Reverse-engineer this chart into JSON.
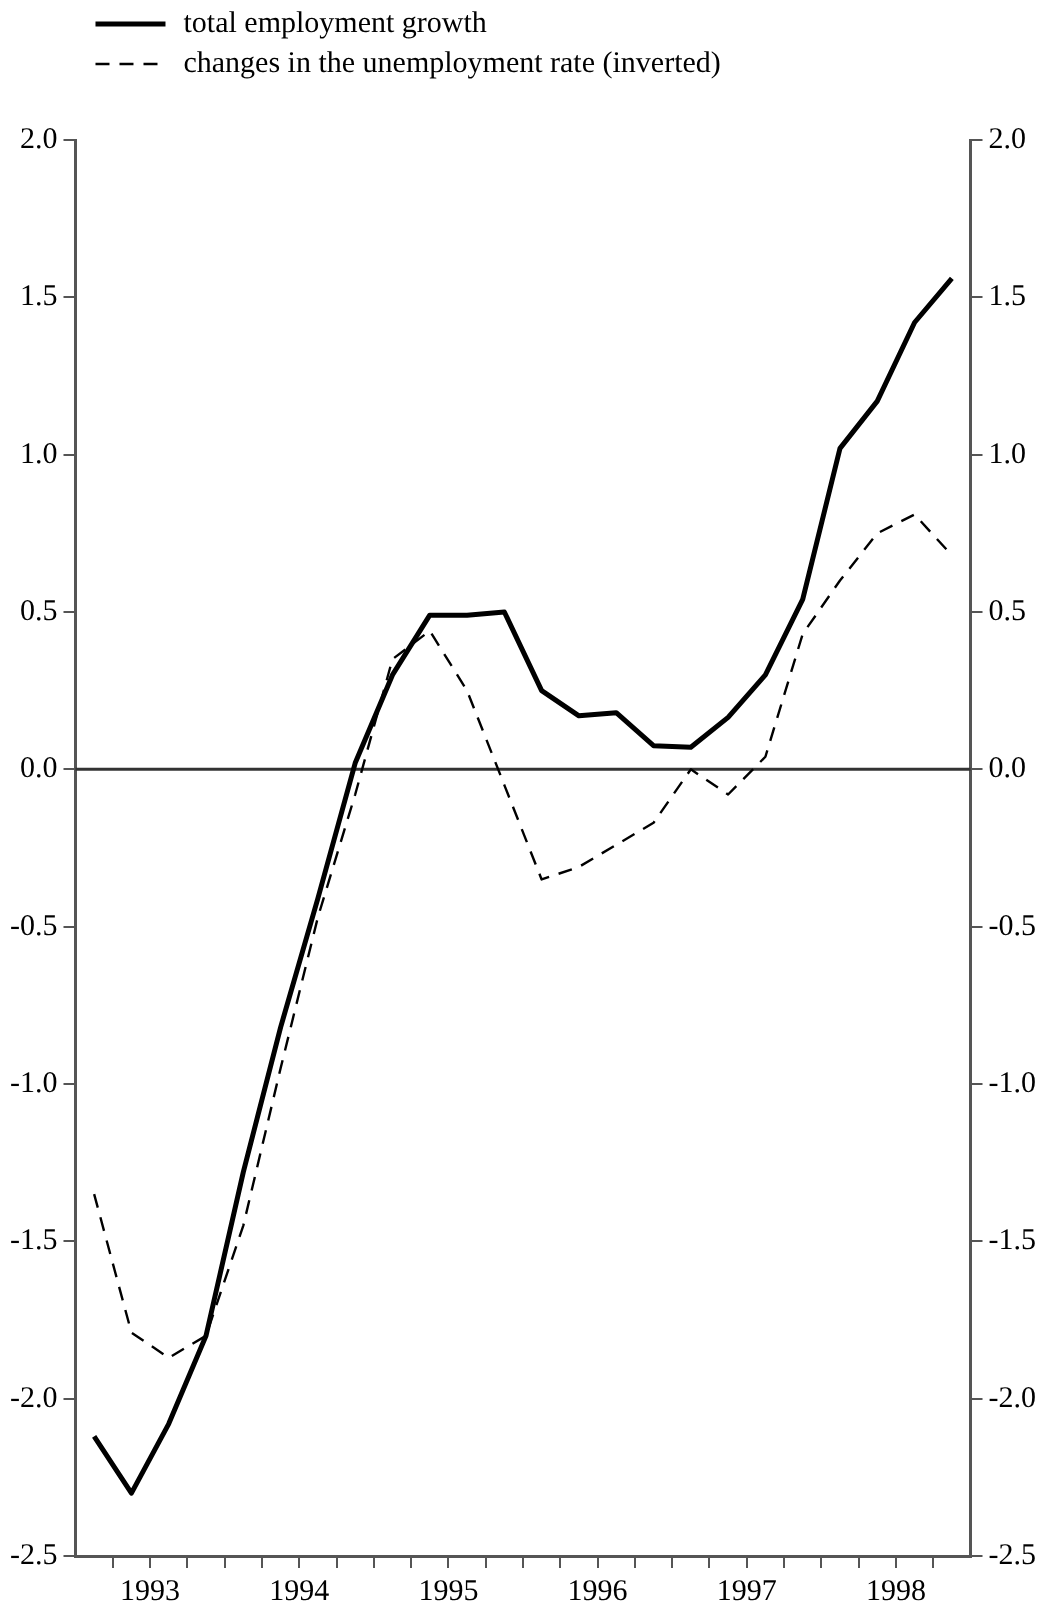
{
  "chart_data": {
    "type": "line",
    "marker": "none",
    "legend": "top left",
    "x": [
      1993.125,
      1993.375,
      1993.625,
      1993.875,
      1994.125,
      1994.375,
      1994.625,
      1994.875,
      1995.125,
      1995.375,
      1995.625,
      1995.875,
      1996.125,
      1996.375,
      1996.625,
      1996.875,
      1997.125,
      1997.375,
      1997.625,
      1997.875,
      1998.125,
      1998.375,
      1998.625,
      1998.875
    ],
    "series": [
      {
        "name": "total employment growth",
        "color": "#000000",
        "line_style": "solid",
        "values": [
          -2.12,
          -2.3,
          -2.08,
          -1.8,
          -1.28,
          -0.82,
          -0.41,
          0.02,
          0.3,
          0.49,
          0.49,
          0.5,
          0.25,
          0.17,
          0.18,
          0.075,
          0.07,
          0.165,
          0.3,
          0.54,
          1.02,
          1.17,
          1.42,
          1.56
        ]
      },
      {
        "name": "changes in the unemployment rate (inverted)",
        "color": "#000000",
        "line_style": "dashed",
        "values": [
          -1.35,
          -1.79,
          -1.87,
          -1.8,
          -1.45,
          -0.95,
          -0.47,
          -0.08,
          0.35,
          0.44,
          0.25,
          -0.05,
          -0.35,
          -0.31,
          -0.24,
          -0.17,
          0.0,
          -0.08,
          0.04,
          0.43,
          0.6,
          0.75,
          0.81,
          0.68
        ]
      }
    ],
    "xlim": [
      1993,
      1999
    ],
    "xticks": [
      {
        "value": 1993.25,
        "label": null
      },
      {
        "value": 1993.5,
        "label": "1993"
      },
      {
        "value": 1993.75,
        "label": null
      },
      {
        "value": 1994,
        "label": null
      },
      {
        "value": 1994.25,
        "label": null
      },
      {
        "value": 1994.5,
        "label": "1994"
      },
      {
        "value": 1994.75,
        "label": null
      },
      {
        "value": 1995,
        "label": null
      },
      {
        "value": 1995.25,
        "label": null
      },
      {
        "value": 1995.5,
        "label": "1995"
      },
      {
        "value": 1995.75,
        "label": null
      },
      {
        "value": 1996,
        "label": null
      },
      {
        "value": 1996.25,
        "label": null
      },
      {
        "value": 1996.5,
        "label": "1996"
      },
      {
        "value": 1996.75,
        "label": null
      },
      {
        "value": 1997,
        "label": null
      },
      {
        "value": 1997.25,
        "label": null
      },
      {
        "value": 1997.5,
        "label": "1997"
      },
      {
        "value": 1997.75,
        "label": null
      },
      {
        "value": 1998,
        "label": null
      },
      {
        "value": 1998.25,
        "label": null
      },
      {
        "value": 1998.5,
        "label": "1998"
      },
      {
        "value": 1998.75,
        "label": null
      }
    ],
    "ylim": [
      -2.5,
      2.0
    ],
    "yticks": [
      {
        "value": -2.5,
        "label": "-2.5"
      },
      {
        "value": -2,
        "label": "-2.0"
      },
      {
        "value": -1.5,
        "label": "-1.5"
      },
      {
        "value": -1,
        "label": "-1.0"
      },
      {
        "value": -0.5,
        "label": "-0.5"
      },
      {
        "value": 0,
        "label": "0.0"
      },
      {
        "value": 0.5,
        "label": "0.5"
      },
      {
        "value": 1,
        "label": "1.0"
      },
      {
        "value": 1.5,
        "label": "1.5"
      },
      {
        "value": 2,
        "label": "2.0"
      }
    ],
    "y2lim": [
      -2.5,
      2.0
    ],
    "y2ticks": [
      {
        "value": -2.5,
        "label": "-2.5"
      },
      {
        "value": -2,
        "label": "-2.0"
      },
      {
        "value": -1.5,
        "label": "-1.5"
      },
      {
        "value": -1,
        "label": "-1.0"
      },
      {
        "value": -0.5,
        "label": "-0.5"
      },
      {
        "value": 0,
        "label": "0.0"
      },
      {
        "value": 0.5,
        "label": "0.5"
      },
      {
        "value": 1,
        "label": "1.0"
      },
      {
        "value": 1.5,
        "label": "1.5"
      },
      {
        "value": 2,
        "label": "2.0"
      }
    ],
    "ref_lines": [
      {
        "axis": "y",
        "value": 0,
        "color": "#333333"
      }
    ]
  }
}
